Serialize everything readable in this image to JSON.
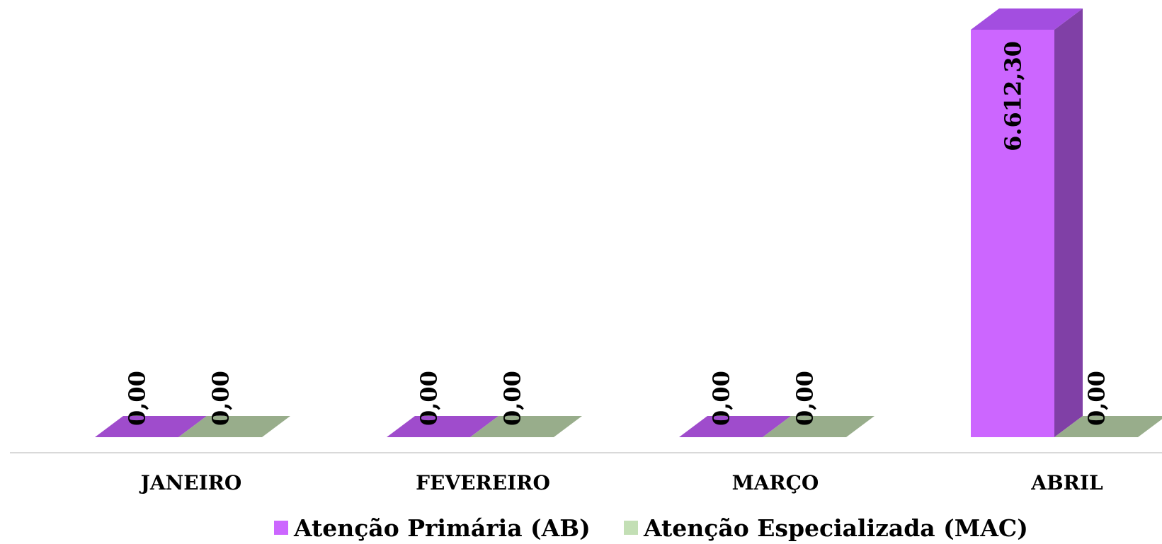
{
  "chart_data": {
    "type": "bar",
    "categories": [
      "JANEIRO",
      "FEVEREIRO",
      "MARÇO",
      "ABRIL"
    ],
    "series": [
      {
        "name": "Atenção Primária (AB)",
        "values": [
          0,
          0,
          0,
          6612.3
        ],
        "labels": [
          "0,00",
          "0,00",
          "0,00",
          "6.612,30"
        ],
        "color_front": "#cc66ff",
        "color_side": "#8040a6",
        "color_top": "#a34ee0",
        "color_floor": "#9f4ccc",
        "legend_color": "#cc66ff"
      },
      {
        "name": "Atenção Especializada (MAC)",
        "values": [
          0,
          0,
          0,
          0
        ],
        "labels": [
          "0,00",
          "0,00",
          "0,00",
          "0,00"
        ],
        "color_front": "#c3dfb5",
        "color_side": "#8aa27f",
        "color_top": "#9aae8c",
        "color_floor": "#98ad8b",
        "legend_color": "#c3dfb5"
      }
    ],
    "legend_position": "bottom",
    "grid": false,
    "three_d": true,
    "ylim": [
      0,
      6612.3
    ]
  }
}
